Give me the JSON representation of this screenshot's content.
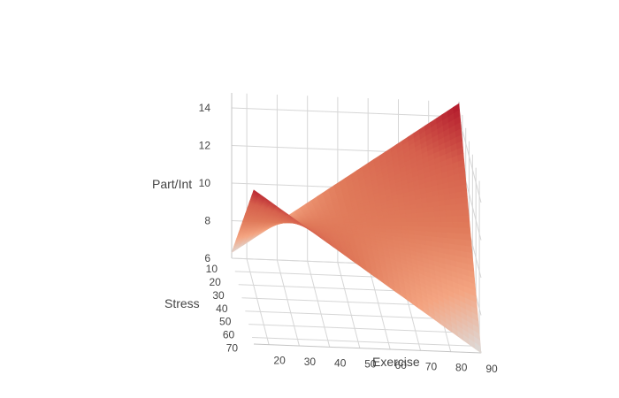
{
  "chart_data": {
    "type": "surface",
    "title": "",
    "colorscale": [
      "#dcdcdc",
      "#f4a582",
      "#e07a5a",
      "#d6604d",
      "#b2182b"
    ],
    "x_axis": {
      "title": "Exercise",
      "ticks": [
        20,
        30,
        40,
        50,
        60,
        70,
        80,
        90
      ],
      "range": [
        15,
        90
      ]
    },
    "y_axis": {
      "title": "Stress",
      "ticks": [
        10,
        20,
        30,
        40,
        50,
        60,
        70
      ],
      "range": [
        10,
        75
      ]
    },
    "z_axis": {
      "title": "Part/Int",
      "ticks": [
        6,
        8,
        10,
        12,
        14
      ],
      "range": [
        6,
        14.8
      ]
    },
    "x": [
      15,
      90
    ],
    "y": [
      10,
      75
    ],
    "z": [
      [
        6.3,
        14.7
      ],
      [
        14.2,
        6.0
      ]
    ]
  }
}
